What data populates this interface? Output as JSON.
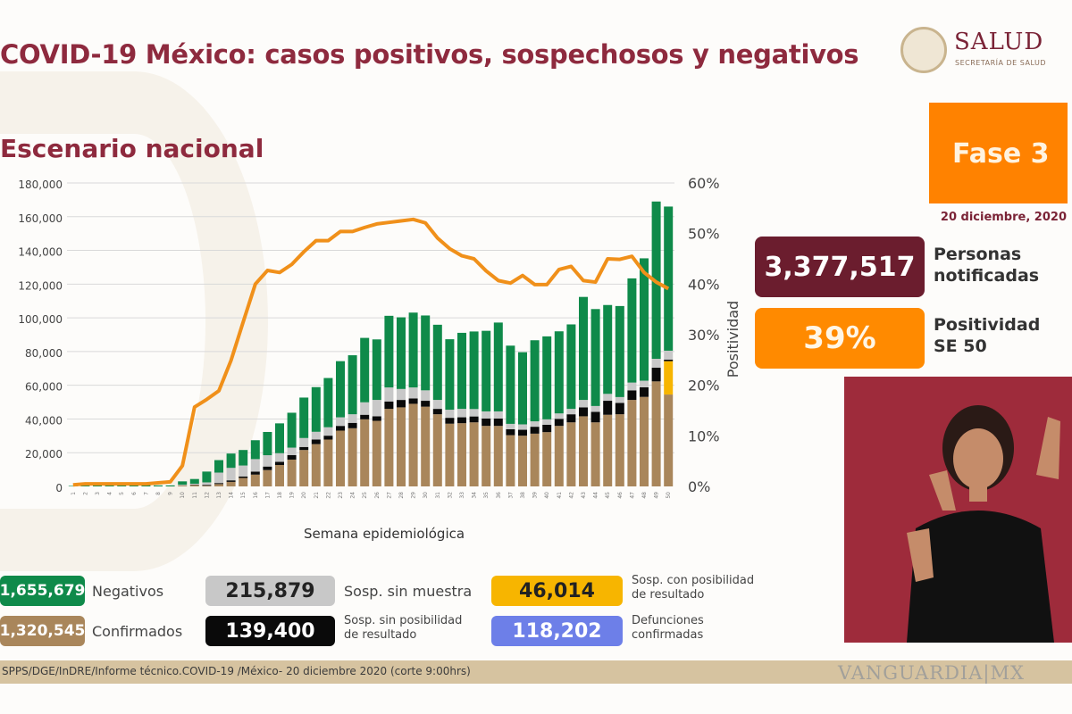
{
  "header": {
    "title": "COVID-19 México: casos positivos, sospechosos y negativos",
    "subtitle": "Escenario nacional",
    "logo_text": "SALUD",
    "logo_subtext": "SECRETARÍA DE SALUD"
  },
  "phase": {
    "label": "Fase 3",
    "date": "20 diciembre, 2020"
  },
  "kpis": [
    {
      "value": "3,377,517",
      "label_line1": "Personas",
      "label_line2": "notificadas",
      "color": "#6b1d2e"
    },
    {
      "value": "39%",
      "label_line1": "Positividad",
      "label_line2": "SE 50",
      "color": "#ff8a00"
    }
  ],
  "legend": [
    {
      "value": "1,655,679",
      "label": "Negativos",
      "color": "#0f8a4a"
    },
    {
      "value": "215,879",
      "label": "Sosp. sin muestra",
      "color": "#c8c8c8"
    },
    {
      "value": "46,014",
      "label1": "Sosp. con posibilidad",
      "label2": "de resultado",
      "color": "#f7b500"
    },
    {
      "value": "1,320,545",
      "label": "Confirmados",
      "color": "#a9865b"
    },
    {
      "value": "139,400",
      "label1": "Sosp. sin posibilidad",
      "label2": "de resultado",
      "color": "#0a0a0a"
    },
    {
      "value": "118,202",
      "label1": "Defunciones",
      "label2": "confirmadas",
      "color": "#6d7fe8"
    }
  ],
  "footer": {
    "source": "SPPS/DGE/InDRE/Informe técnico.COVID-19 /México- 20 diciembre 2020 (corte 9:00hrs)",
    "watermark": "VANGUARDIA|MX"
  },
  "chart_data": {
    "type": "bar",
    "stacked": true,
    "xlabel": "Semana epidemiológica",
    "ylabel": "",
    "y2label": "Positividad",
    "ylim": [
      0,
      180000
    ],
    "yticks": [
      0,
      20000,
      40000,
      60000,
      80000,
      100000,
      120000,
      140000,
      160000,
      180000
    ],
    "y2lim": [
      0,
      60
    ],
    "y2ticks": [
      "0%",
      "10%",
      "20%",
      "30%",
      "40%",
      "50%",
      "60%"
    ],
    "grid": true,
    "categories": [
      1,
      2,
      3,
      4,
      5,
      6,
      7,
      8,
      9,
      10,
      11,
      12,
      13,
      14,
      15,
      16,
      17,
      18,
      19,
      20,
      21,
      22,
      23,
      24,
      25,
      26,
      27,
      28,
      29,
      30,
      31,
      32,
      33,
      34,
      35,
      36,
      37,
      38,
      39,
      40,
      41,
      42,
      43,
      44,
      45,
      46,
      47,
      48,
      49,
      50
    ],
    "series": [
      {
        "name": "Confirmados",
        "color": "#a9865b",
        "values": [
          0,
          0,
          0,
          0,
          0,
          0,
          0,
          0,
          0,
          0.5,
          0.8,
          0.4,
          1.4,
          2.7,
          5,
          7,
          9.7,
          12.7,
          15.9,
          21.6,
          25.1,
          27.8,
          33.1,
          34.5,
          39.8,
          38.9,
          46,
          46.9,
          49,
          47.3,
          42.8,
          37.2,
          37.5,
          38,
          35.9,
          35.9,
          30.4,
          30.1,
          31.3,
          32.2,
          35.9,
          38,
          41.6,
          38,
          42.5,
          42.8,
          51.3,
          53.1,
          62.3,
          54.5
        ]
      },
      {
        "name": "Sosp. con posibilidad de resultado",
        "color": "#f7b500",
        "values": [
          0,
          0,
          0,
          0,
          0,
          0,
          0,
          0,
          0,
          0,
          0,
          0,
          0,
          0,
          0,
          0,
          0,
          0,
          0,
          0,
          0,
          0,
          0,
          0,
          0,
          0,
          0,
          0,
          0,
          0,
          0,
          0,
          0,
          0,
          0,
          0,
          0,
          0,
          0,
          0,
          0,
          0,
          0,
          0,
          0,
          0,
          0,
          0,
          0,
          19.8
        ]
      },
      {
        "name": "Sosp. sin posibilidad de resultado",
        "color": "#0a0a0a",
        "values": [
          0,
          0,
          0,
          0,
          0,
          0,
          0,
          0,
          0,
          0,
          0.2,
          0.5,
          0.6,
          0.9,
          0.9,
          1.8,
          2.1,
          1.9,
          2.7,
          1.8,
          2.7,
          2.3,
          2.8,
          3.2,
          2.7,
          2.7,
          4.4,
          4.4,
          3.2,
          3.5,
          3.2,
          3.5,
          3.5,
          3.5,
          4.4,
          4.4,
          3.5,
          3.5,
          4.1,
          4.4,
          4.2,
          4.8,
          5.3,
          6.2,
          8.3,
          6.7,
          5.7,
          5.7,
          8.1,
          0.9
        ]
      },
      {
        "name": "Sosp. sin muestra",
        "color": "#c8c8c8",
        "values": [
          0,
          0,
          0,
          0,
          0,
          0,
          0,
          0,
          0,
          0.5,
          0.6,
          1.5,
          6.2,
          7.4,
          6.5,
          7.4,
          6.7,
          5.1,
          4.4,
          5.3,
          4.6,
          5,
          5.1,
          5.1,
          7.4,
          9.7,
          8.3,
          6.5,
          6.5,
          6.2,
          5.3,
          4.8,
          5,
          4.4,
          4.2,
          4.2,
          3.2,
          3.2,
          3.2,
          3.2,
          3.2,
          3.2,
          4.4,
          3.5,
          4.1,
          3.5,
          4.6,
          3.9,
          5.3,
          5.3
        ]
      },
      {
        "name": "Negativos",
        "color": "#0f8a4a",
        "values": [
          0.3,
          0.5,
          0.9,
          1,
          0.8,
          0.8,
          0.8,
          0.6,
          0.6,
          2,
          2.8,
          6.4,
          7.4,
          8.5,
          9.2,
          11.2,
          13.8,
          17.7,
          20.7,
          24,
          26.5,
          29.2,
          33.3,
          35,
          38.2,
          35.9,
          42.5,
          42.5,
          44.4,
          44.4,
          44.6,
          41.8,
          45.1,
          46,
          47.8,
          52.7,
          46.4,
          42.8,
          48.1,
          49.2,
          48.7,
          50.1,
          61.1,
          57.5,
          52.7,
          54,
          61.8,
          72.6,
          93.3,
          85.5
        ]
      }
    ],
    "value_unit": "thousands",
    "line": {
      "name": "Positividad",
      "axis": "right",
      "color": "#f0901a",
      "values": [
        0.3,
        0.5,
        0.5,
        0.5,
        0.5,
        0.5,
        0.5,
        0.7,
        0.9,
        4.1,
        15.7,
        17.2,
        18.9,
        24.9,
        32.5,
        40,
        42.7,
        42.3,
        43.9,
        46.4,
        48.6,
        48.6,
        50.4,
        50.4,
        51.2,
        51.9,
        52.2,
        52.5,
        52.8,
        52.1,
        49.1,
        47,
        45.6,
        45,
        42.6,
        40.7,
        40.2,
        41.7,
        39.9,
        39.9,
        42.9,
        43.5,
        40.7,
        40.4,
        45,
        44.9,
        45.5,
        42.3,
        40.4,
        39.1
      ]
    }
  }
}
